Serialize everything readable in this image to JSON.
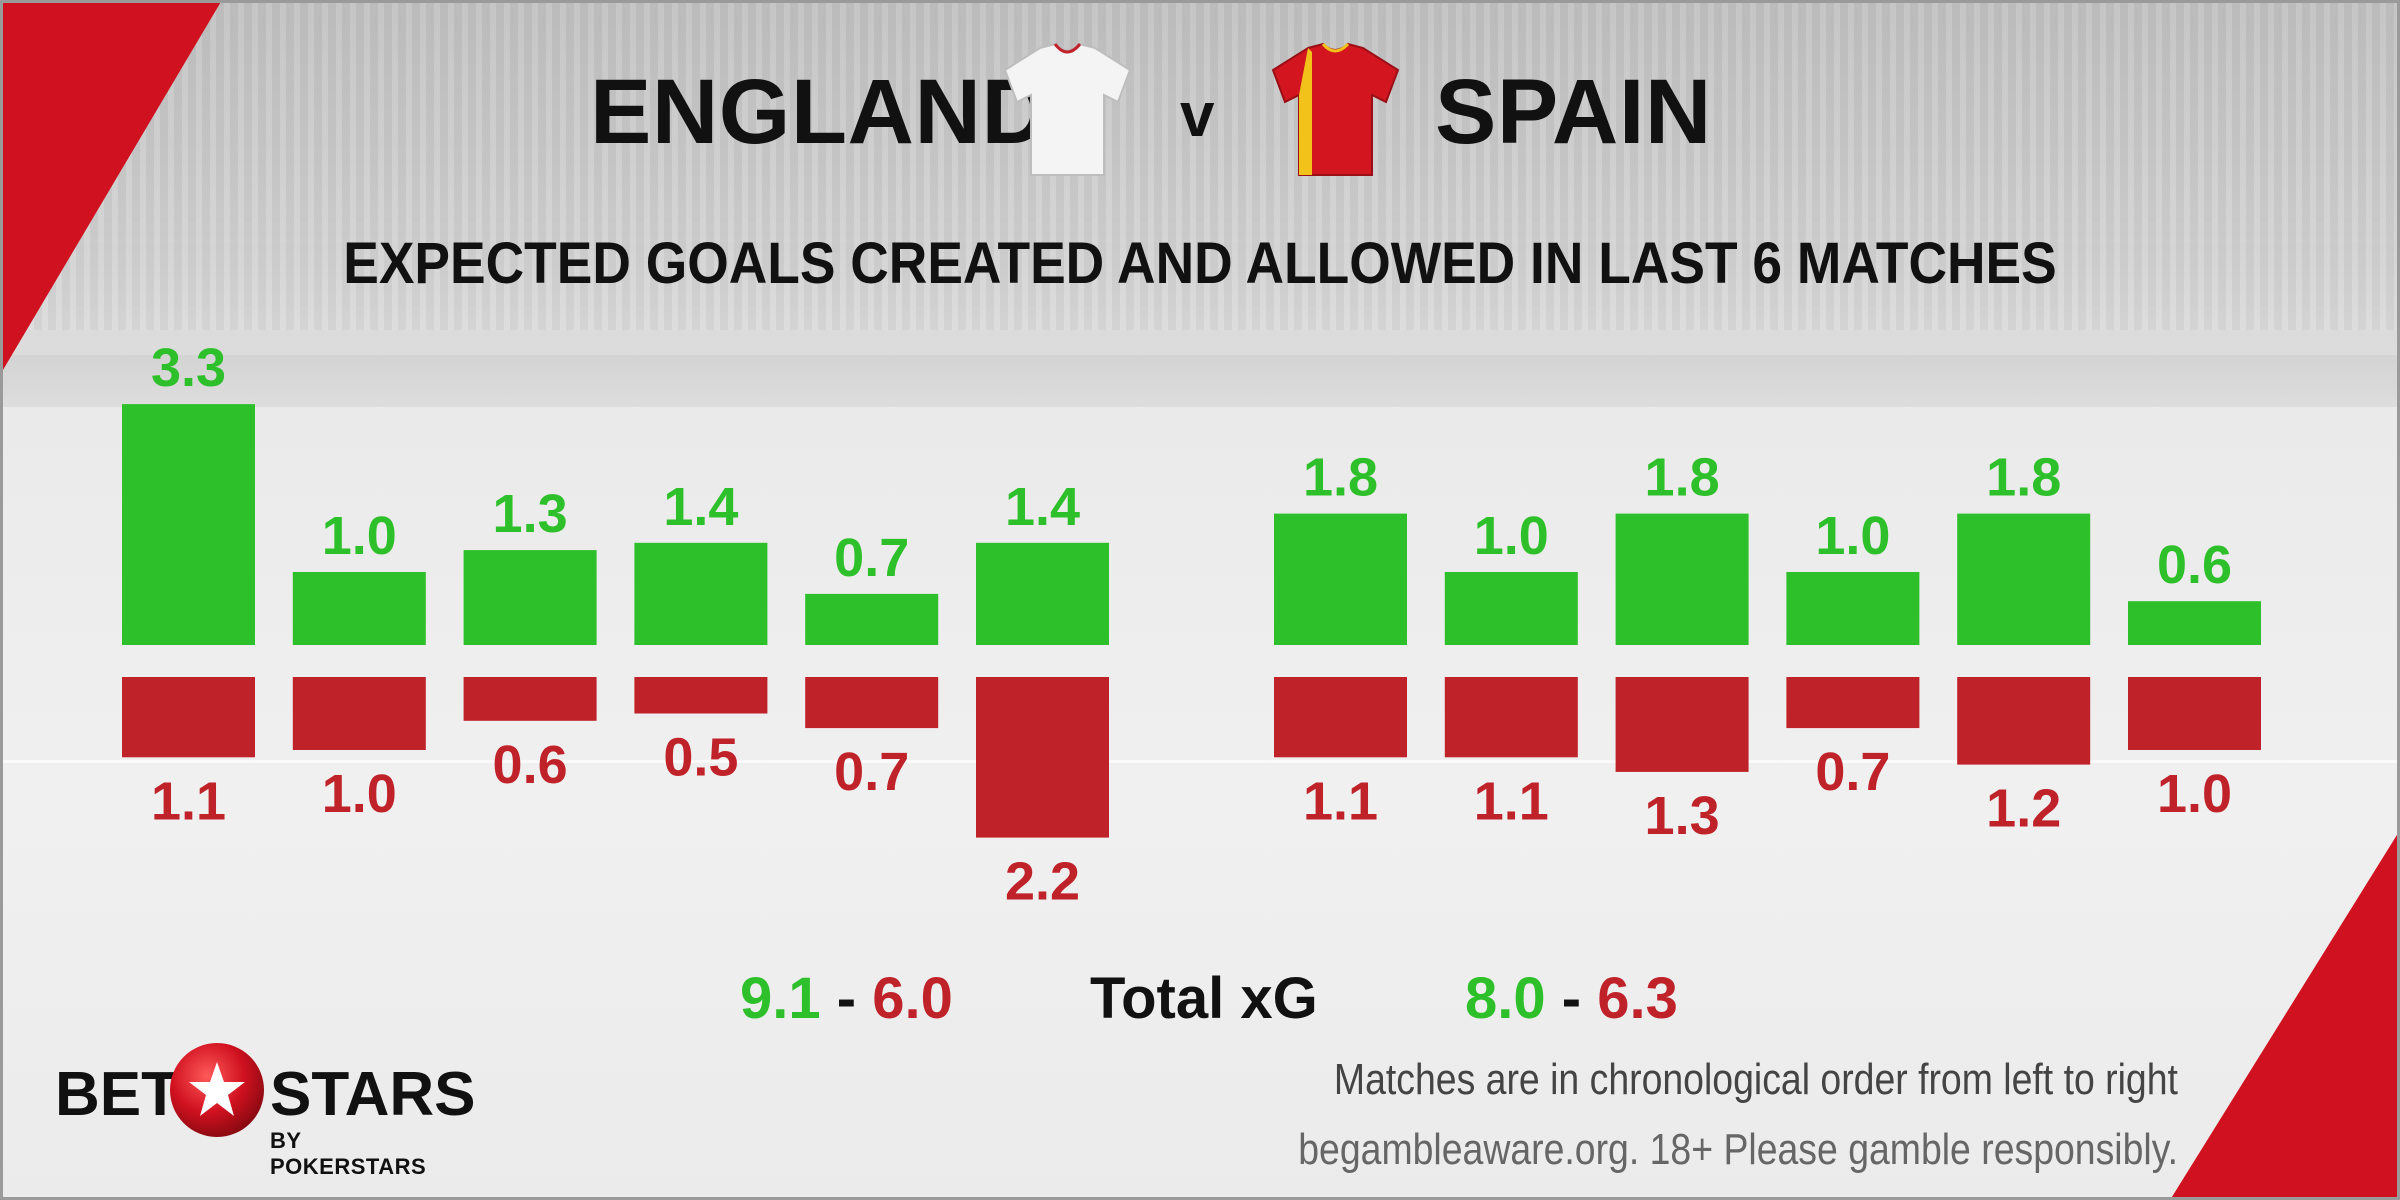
{
  "header": {
    "team_home": "ENGLAND",
    "vs": "v",
    "team_away": "SPAIN",
    "subtitle": "EXPECTED GOALS CREATED AND ALLOWED IN LAST 6 MATCHES"
  },
  "colors": {
    "created": "#2ec02a",
    "allowed": "#c0222a",
    "accent_red": "#d0111f",
    "text": "#111111"
  },
  "chart_data": [
    {
      "type": "bar",
      "team": "ENGLAND",
      "series": [
        {
          "name": "created",
          "values": [
            3.3,
            1.0,
            1.3,
            1.4,
            0.7,
            1.4
          ]
        },
        {
          "name": "allowed",
          "values": [
            1.1,
            1.0,
            0.6,
            0.5,
            0.7,
            2.2
          ]
        }
      ],
      "total_created": "9.1",
      "total_allowed": "6.0"
    },
    {
      "type": "bar",
      "team": "SPAIN",
      "series": [
        {
          "name": "created",
          "values": [
            1.8,
            1.0,
            1.8,
            1.0,
            1.8,
            0.6
          ]
        },
        {
          "name": "allowed",
          "values": [
            1.1,
            1.1,
            1.3,
            0.7,
            1.2,
            1.0
          ]
        }
      ],
      "total_created": "8.0",
      "total_allowed": "6.3"
    }
  ],
  "totals": {
    "label": "Total xG",
    "dash": "-"
  },
  "footer": {
    "note": "Matches are in chronological order from left to right",
    "responsible": "begambleaware.org. 18+ Please gamble responsibly."
  },
  "logo": {
    "bet": "BET",
    "stars": "STARS",
    "sub": "BY POKERSTARS",
    "icon": "star-ball-icon"
  },
  "icons": {
    "home_shirt": "white-shirt-icon",
    "away_shirt": "red-shirt-icon"
  }
}
